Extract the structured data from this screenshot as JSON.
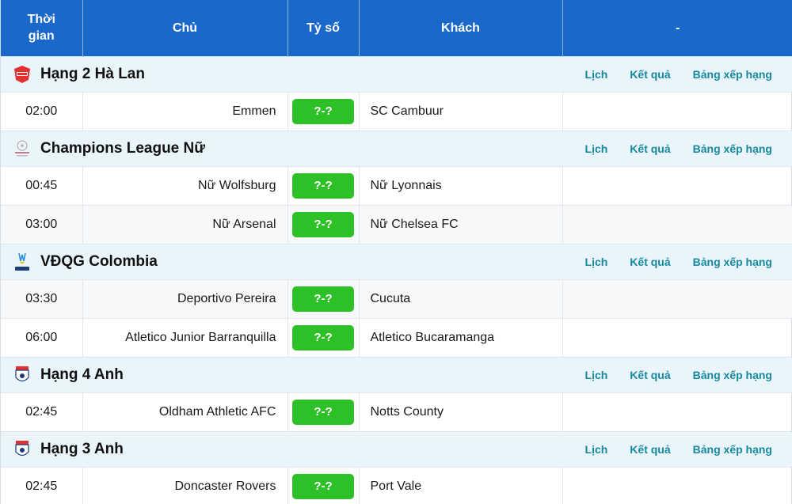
{
  "header": {
    "time_label_1": "Thời",
    "time_label_2": "gian",
    "home": "Chủ",
    "score": "Tỷ số",
    "away": "Khách",
    "extra": "-"
  },
  "links": {
    "schedule": "Lịch",
    "results": "Kết quả",
    "standings": "Bảng xếp hạng"
  },
  "leagues": [
    {
      "name": "Hạng 2 Hà Lan",
      "icon": "eerste-divisie-logo-icon",
      "matches": [
        {
          "time": "02:00",
          "home": "Emmen",
          "score": "?-?",
          "away": "SC Cambuur"
        }
      ]
    },
    {
      "name": "Champions League Nữ",
      "icon": "womens-champions-league-logo-icon",
      "matches": [
        {
          "time": "00:45",
          "home": "Nữ Wolfsburg",
          "score": "?-?",
          "away": "Nữ Lyonnais"
        },
        {
          "time": "03:00",
          "home": "Nữ Arsenal",
          "score": "?-?",
          "away": "Nữ Chelsea FC"
        }
      ]
    },
    {
      "name": "VĐQG Colombia",
      "icon": "betplay-liga-logo-icon",
      "matches": [
        {
          "time": "03:30",
          "home": "Deportivo Pereira",
          "score": "?-?",
          "away": "Cucuta"
        },
        {
          "time": "06:00",
          "home": "Atletico Junior Barranquilla",
          "score": "?-?",
          "away": "Atletico Bucaramanga"
        }
      ]
    },
    {
      "name": "Hạng 4 Anh",
      "icon": "efl-league-two-logo-icon",
      "matches": [
        {
          "time": "02:45",
          "home": "Oldham Athletic AFC",
          "score": "?-?",
          "away": "Notts County"
        }
      ]
    },
    {
      "name": "Hạng 3 Anh",
      "icon": "efl-league-one-logo-icon",
      "matches": [
        {
          "time": "02:45",
          "home": "Doncaster Rovers",
          "score": "?-?",
          "away": "Port Vale"
        }
      ]
    }
  ],
  "colors": {
    "header_bg": "#1a68c9",
    "league_bg": "#eaf5fb",
    "score_bg": "#2ec127",
    "link": "#17899e"
  }
}
